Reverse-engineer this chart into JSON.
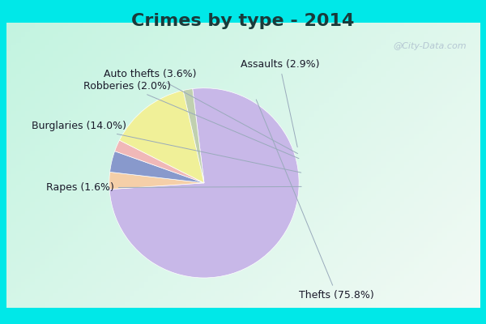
{
  "title": "Crimes by type - 2014",
  "slices": [
    {
      "label": "Thefts",
      "pct": 75.8,
      "color": "#c8b8e8"
    },
    {
      "label": "Assaults",
      "pct": 2.9,
      "color": "#f5cfa8"
    },
    {
      "label": "Auto thefts",
      "pct": 3.6,
      "color": "#8899cc"
    },
    {
      "label": "Robberies",
      "pct": 2.0,
      "color": "#f0b8b8"
    },
    {
      "label": "Burglaries",
      "pct": 14.0,
      "color": "#f0f098"
    },
    {
      "label": "Rapes",
      "pct": 1.6,
      "color": "#c0d0b0"
    }
  ],
  "start_angle": 97,
  "bg_color": "#d8f0e0",
  "cyan_color": "#00e8e8",
  "title_fontsize": 16,
  "label_fontsize": 9,
  "title_color": "#1a3a3a",
  "label_color": "#1a1a2a",
  "watermark": "@City-Data.com",
  "watermark_color": "#aabbcc"
}
